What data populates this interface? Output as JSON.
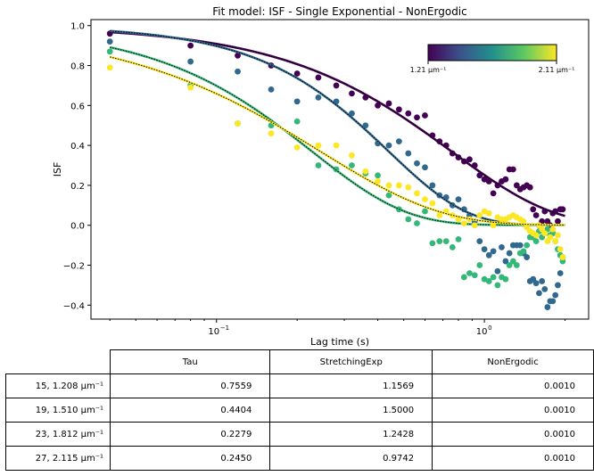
{
  "chart_data": {
    "type": "scatter",
    "title": "Fit model: ISF - Single Exponential - NonErgodic",
    "xlabel": "Lag time (s)",
    "ylabel": "ISF",
    "xscale": "log",
    "xlim": [
      0.034,
      2.45
    ],
    "ylim": [
      -0.47,
      1.03
    ],
    "yticks": [
      -0.4,
      -0.2,
      0.0,
      0.2,
      0.4,
      0.6,
      0.8,
      1.0
    ],
    "ytick_labels": [
      "−0.4",
      "−0.2",
      "0.0",
      "0.2",
      "0.4",
      "0.6",
      "0.8",
      "1.0"
    ],
    "xticks": [
      0.1,
      1.0
    ],
    "xtick_labels": [
      "10",
      "10"
    ],
    "xtick_exponents": [
      "−1",
      "0"
    ],
    "grid": false,
    "colorbar": {
      "colormap": "viridis",
      "min_label": "1.21 μm⁻¹",
      "max_label": "2.11 μm⁻¹",
      "colors": [
        "#440154",
        "#3b528b",
        "#21918c",
        "#5ec962",
        "#fde725"
      ]
    },
    "series": [
      {
        "color": "#440154",
        "fit": {
          "tau": 0.7559,
          "beta": 1.1569,
          "nonergodic": 0.001
        },
        "points": [
          [
            0.04,
            0.96
          ],
          [
            0.08,
            0.9
          ],
          [
            0.12,
            0.85
          ],
          [
            0.16,
            0.8
          ],
          [
            0.2,
            0.76
          ],
          [
            0.24,
            0.74
          ],
          [
            0.28,
            0.7
          ],
          [
            0.32,
            0.66
          ],
          [
            0.36,
            0.64
          ],
          [
            0.4,
            0.6
          ],
          [
            0.44,
            0.61
          ],
          [
            0.48,
            0.58
          ],
          [
            0.52,
            0.56
          ],
          [
            0.56,
            0.54
          ],
          [
            0.6,
            0.55
          ],
          [
            0.64,
            0.45
          ],
          [
            0.68,
            0.42
          ],
          [
            0.72,
            0.4
          ],
          [
            0.76,
            0.36
          ],
          [
            0.8,
            0.34
          ],
          [
            0.84,
            0.32
          ],
          [
            0.88,
            0.33
          ],
          [
            0.92,
            0.3
          ],
          [
            0.96,
            0.25
          ],
          [
            1.0,
            0.23
          ],
          [
            1.04,
            0.22
          ],
          [
            1.08,
            0.16
          ],
          [
            1.12,
            0.2
          ],
          [
            1.16,
            0.22
          ],
          [
            1.2,
            0.23
          ],
          [
            1.24,
            0.28
          ],
          [
            1.28,
            0.28
          ],
          [
            1.32,
            0.2
          ],
          [
            1.36,
            0.18
          ],
          [
            1.4,
            0.19
          ],
          [
            1.44,
            0.2
          ],
          [
            1.48,
            0.19
          ],
          [
            1.52,
            0.08
          ],
          [
            1.56,
            0.05
          ],
          [
            1.6,
            0.0
          ],
          [
            1.64,
            0.02
          ],
          [
            1.68,
            0.07
          ],
          [
            1.72,
            0.02
          ],
          [
            1.76,
            0.0
          ],
          [
            1.8,
            0.06
          ],
          [
            1.84,
            0.07
          ],
          [
            1.88,
            0.02
          ],
          [
            1.92,
            0.08
          ],
          [
            1.96,
            0.08
          ]
        ]
      },
      {
        "color": "#31688e",
        "fit": {
          "tau": 0.4404,
          "beta": 1.5,
          "nonergodic": 0.001
        },
        "points": [
          [
            0.04,
            0.92
          ],
          [
            0.08,
            0.82
          ],
          [
            0.12,
            0.77
          ],
          [
            0.16,
            0.68
          ],
          [
            0.2,
            0.62
          ],
          [
            0.24,
            0.64
          ],
          [
            0.28,
            0.62
          ],
          [
            0.32,
            0.56
          ],
          [
            0.36,
            0.5
          ],
          [
            0.4,
            0.41
          ],
          [
            0.44,
            0.4
          ],
          [
            0.48,
            0.42
          ],
          [
            0.52,
            0.36
          ],
          [
            0.56,
            0.31
          ],
          [
            0.6,
            0.29
          ],
          [
            0.64,
            0.2
          ],
          [
            0.68,
            0.15
          ],
          [
            0.72,
            0.14
          ],
          [
            0.76,
            0.1
          ],
          [
            0.8,
            0.13
          ],
          [
            0.84,
            0.08
          ],
          [
            0.88,
            0.05
          ],
          [
            0.92,
            0.02
          ],
          [
            0.96,
            -0.08
          ],
          [
            1.0,
            -0.12
          ],
          [
            1.04,
            -0.15
          ],
          [
            1.08,
            -0.13
          ],
          [
            1.12,
            -0.23
          ],
          [
            1.16,
            -0.11
          ],
          [
            1.2,
            -0.18
          ],
          [
            1.24,
            -0.14
          ],
          [
            1.28,
            -0.1
          ],
          [
            1.32,
            -0.1
          ],
          [
            1.36,
            -0.1
          ],
          [
            1.4,
            -0.14
          ],
          [
            1.44,
            -0.16
          ],
          [
            1.48,
            -0.28
          ],
          [
            1.52,
            -0.27
          ],
          [
            1.56,
            -0.29
          ],
          [
            1.6,
            -0.34
          ],
          [
            1.64,
            -0.28
          ],
          [
            1.68,
            -0.32
          ],
          [
            1.72,
            -0.41
          ],
          [
            1.76,
            -0.38
          ],
          [
            1.8,
            -0.38
          ],
          [
            1.84,
            -0.35
          ],
          [
            1.88,
            -0.3
          ],
          [
            1.92,
            -0.24
          ],
          [
            1.96,
            -0.16
          ]
        ]
      },
      {
        "color": "#35b779",
        "fit": {
          "tau": 0.2279,
          "beta": 1.2428,
          "nonergodic": 0.001
        },
        "points": [
          [
            0.04,
            0.87
          ],
          [
            0.08,
            0.7
          ],
          [
            0.12,
            0.51
          ],
          [
            0.16,
            0.5
          ],
          [
            0.2,
            0.52
          ],
          [
            0.24,
            0.3
          ],
          [
            0.28,
            0.28
          ],
          [
            0.32,
            0.3
          ],
          [
            0.36,
            0.26
          ],
          [
            0.4,
            0.25
          ],
          [
            0.44,
            0.15
          ],
          [
            0.48,
            0.08
          ],
          [
            0.52,
            0.03
          ],
          [
            0.56,
            0.01
          ],
          [
            0.6,
            0.07
          ],
          [
            0.64,
            -0.09
          ],
          [
            0.68,
            -0.08
          ],
          [
            0.72,
            -0.08
          ],
          [
            0.76,
            -0.11
          ],
          [
            0.8,
            -0.07
          ],
          [
            0.84,
            -0.26
          ],
          [
            0.88,
            -0.24
          ],
          [
            0.92,
            -0.25
          ],
          [
            0.96,
            -0.2
          ],
          [
            1.0,
            -0.27
          ],
          [
            1.04,
            -0.28
          ],
          [
            1.08,
            -0.26
          ],
          [
            1.12,
            -0.3
          ],
          [
            1.16,
            -0.26
          ],
          [
            1.2,
            -0.27
          ],
          [
            1.24,
            -0.2
          ],
          [
            1.28,
            -0.18
          ],
          [
            1.32,
            -0.2
          ],
          [
            1.36,
            -0.14
          ],
          [
            1.4,
            -0.13
          ],
          [
            1.44,
            -0.1
          ],
          [
            1.48,
            -0.06
          ],
          [
            1.52,
            -0.06
          ],
          [
            1.56,
            -0.08
          ],
          [
            1.6,
            -0.03
          ],
          [
            1.64,
            -0.06
          ],
          [
            1.68,
            -0.04
          ],
          [
            1.72,
            -0.02
          ],
          [
            1.76,
            -0.05
          ],
          [
            1.8,
            -0.04
          ],
          [
            1.84,
            -0.08
          ],
          [
            1.88,
            -0.12
          ],
          [
            1.92,
            -0.15
          ],
          [
            1.96,
            -0.18
          ]
        ]
      },
      {
        "color": "#fde725",
        "fit": {
          "tau": 0.245,
          "beta": 0.9742,
          "nonergodic": 0.001
        },
        "points": [
          [
            0.04,
            0.79
          ],
          [
            0.08,
            0.69
          ],
          [
            0.12,
            0.51
          ],
          [
            0.16,
            0.46
          ],
          [
            0.2,
            0.39
          ],
          [
            0.24,
            0.4
          ],
          [
            0.28,
            0.4
          ],
          [
            0.32,
            0.35
          ],
          [
            0.36,
            0.27
          ],
          [
            0.4,
            0.22
          ],
          [
            0.44,
            0.2
          ],
          [
            0.48,
            0.2
          ],
          [
            0.52,
            0.19
          ],
          [
            0.56,
            0.16
          ],
          [
            0.6,
            0.13
          ],
          [
            0.64,
            0.11
          ],
          [
            0.68,
            0.05
          ],
          [
            0.72,
            0.07
          ],
          [
            0.76,
            0.05
          ],
          [
            0.8,
            0.03
          ],
          [
            0.84,
            0.01
          ],
          [
            0.88,
            0.03
          ],
          [
            0.92,
            0.0
          ],
          [
            0.96,
            0.05
          ],
          [
            1.0,
            0.07
          ],
          [
            1.04,
            0.06
          ],
          [
            1.08,
            0.0
          ],
          [
            1.12,
            0.04
          ],
          [
            1.16,
            0.03
          ],
          [
            1.2,
            0.03
          ],
          [
            1.24,
            0.04
          ],
          [
            1.28,
            0.05
          ],
          [
            1.32,
            0.04
          ],
          [
            1.36,
            0.03
          ],
          [
            1.4,
            0.02
          ],
          [
            1.44,
            -0.01
          ],
          [
            1.48,
            -0.03
          ],
          [
            1.52,
            -0.04
          ],
          [
            1.56,
            -0.05
          ],
          [
            1.6,
            0.0
          ],
          [
            1.64,
            -0.02
          ],
          [
            1.68,
            -0.04
          ],
          [
            1.72,
            -0.08
          ],
          [
            1.76,
            -0.06
          ],
          [
            1.8,
            -0.02
          ],
          [
            1.84,
            -0.08
          ],
          [
            1.88,
            -0.05
          ],
          [
            1.92,
            -0.12
          ],
          [
            1.96,
            -0.16
          ]
        ]
      }
    ],
    "table": {
      "columns": [
        "Tau",
        "StretchingExp",
        "NonErgodic"
      ],
      "rows": [
        {
          "label": "15, 1.208 μm⁻¹",
          "values": [
            "0.7559",
            "1.1569",
            "0.0010"
          ]
        },
        {
          "label": "19, 1.510 μm⁻¹",
          "values": [
            "0.4404",
            "1.5000",
            "0.0010"
          ]
        },
        {
          "label": "23, 1.812 μm⁻¹",
          "values": [
            "0.2279",
            "1.2428",
            "0.0010"
          ]
        },
        {
          "label": "27, 2.115 μm⁻¹",
          "values": [
            "0.2450",
            "0.9742",
            "0.0010"
          ]
        }
      ]
    }
  }
}
